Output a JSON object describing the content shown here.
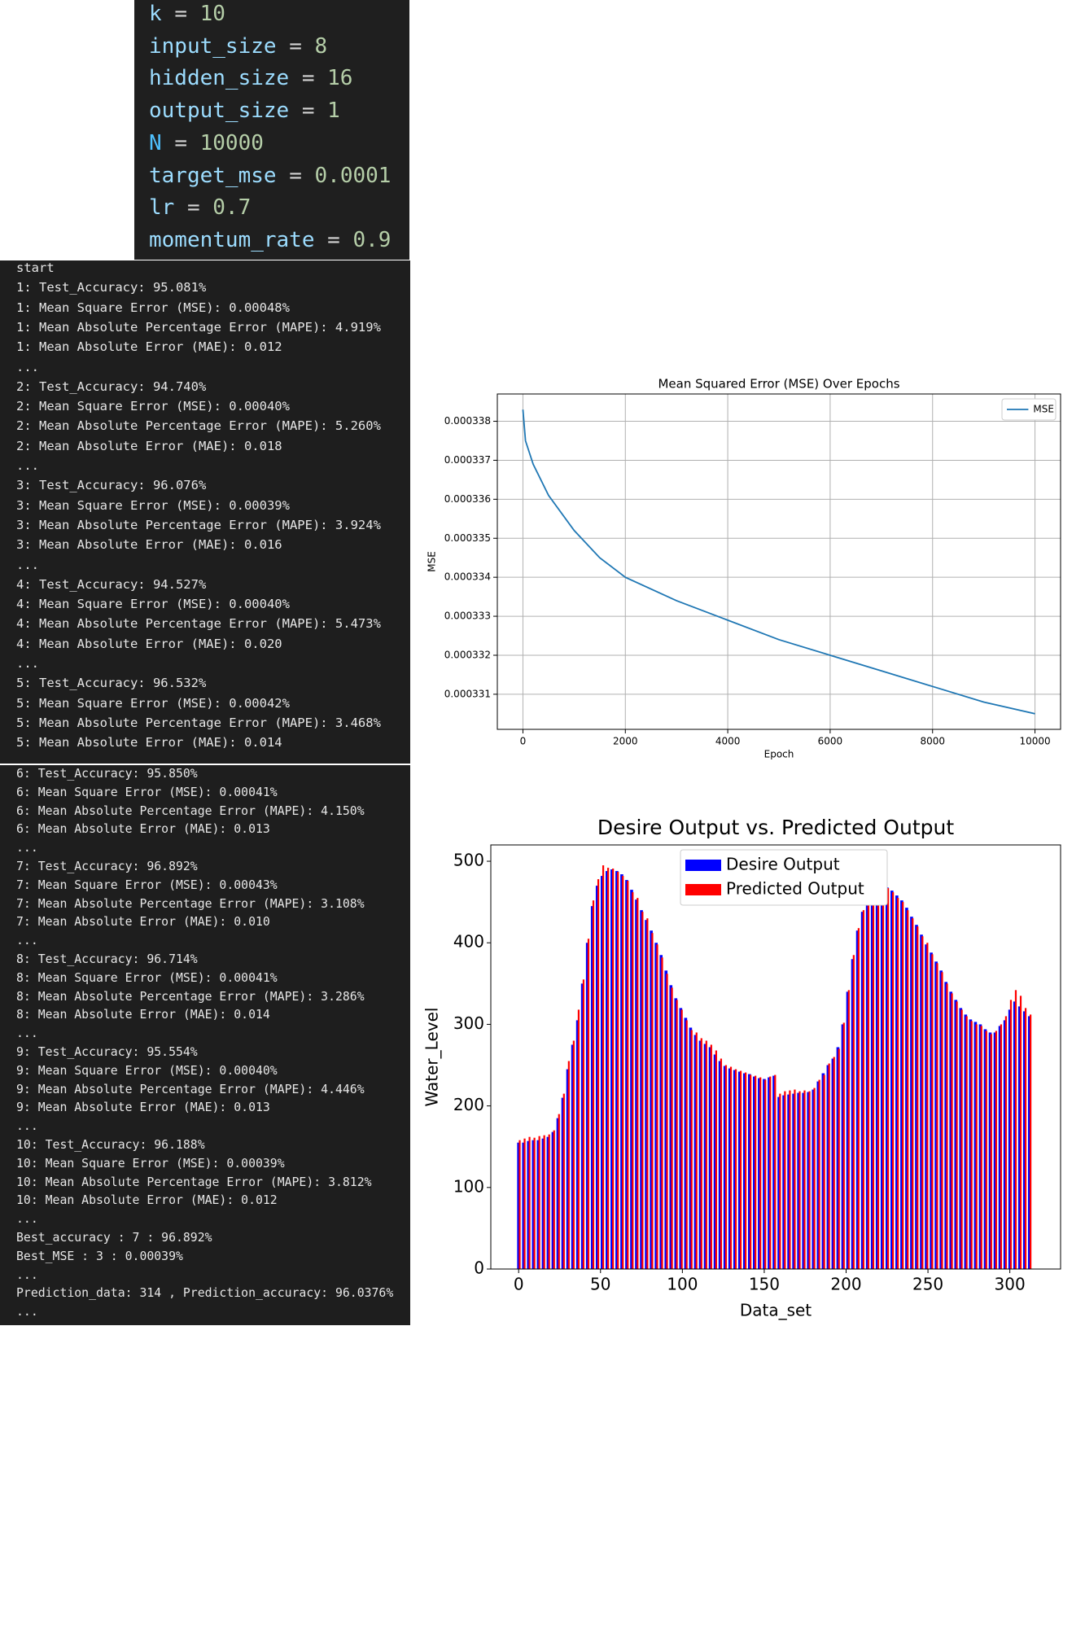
{
  "code": [
    {
      "name": "k",
      "op": "=",
      "value": "10"
    },
    {
      "name": "input_size",
      "op": "=",
      "value": "8"
    },
    {
      "name": "hidden_size",
      "op": "=",
      "value": "16"
    },
    {
      "name": "output_size",
      "op": "=",
      "value": "1"
    },
    {
      "name": "N",
      "op": "=",
      "value": "10000"
    },
    {
      "name": "target_mse",
      "op": "=",
      "value": "0.0001"
    },
    {
      "name": "lr",
      "op": "=",
      "value": "0.7"
    },
    {
      "name": "momentum_rate",
      "op": "=",
      "value": "0.9"
    }
  ],
  "console": {
    "blocks": [
      [
        "start",
        "1: Test_Accuracy: 95.081%",
        "1: Mean Square Error (MSE): 0.00048%",
        "1: Mean Absolute Percentage Error (MAPE): 4.919%",
        "1: Mean Absolute Error (MAE): 0.012",
        "...",
        "2: Test_Accuracy: 94.740%",
        "2: Mean Square Error (MSE): 0.00040%",
        "2: Mean Absolute Percentage Error (MAPE): 5.260%",
        "2: Mean Absolute Error (MAE): 0.018",
        "...",
        "3: Test_Accuracy: 96.076%",
        "3: Mean Square Error (MSE): 0.00039%",
        "3: Mean Absolute Percentage Error (MAPE): 3.924%",
        "3: Mean Absolute Error (MAE): 0.016",
        "...",
        "4: Test_Accuracy: 94.527%",
        "4: Mean Square Error (MSE): 0.00040%",
        "4: Mean Absolute Percentage Error (MAPE): 5.473%",
        "4: Mean Absolute Error (MAE): 0.020",
        "...",
        "5: Test_Accuracy: 96.532%",
        "5: Mean Square Error (MSE): 0.00042%",
        "5: Mean Absolute Percentage Error (MAPE): 3.468%",
        "5: Mean Absolute Error (MAE): 0.014",
        "..."
      ],
      [
        "6: Test_Accuracy: 95.850%",
        "6: Mean Square Error (MSE): 0.00041%",
        "6: Mean Absolute Percentage Error (MAPE): 4.150%",
        "6: Mean Absolute Error (MAE): 0.013",
        "...",
        "7: Test_Accuracy: 96.892%",
        "7: Mean Square Error (MSE): 0.00043%",
        "7: Mean Absolute Percentage Error (MAPE): 3.108%",
        "7: Mean Absolute Error (MAE): 0.010",
        "...",
        "8: Test_Accuracy: 96.714%",
        "8: Mean Square Error (MSE): 0.00041%",
        "8: Mean Absolute Percentage Error (MAPE): 3.286%",
        "8: Mean Absolute Error (MAE): 0.014",
        "...",
        "9: Test_Accuracy: 95.554%",
        "9: Mean Square Error (MSE): 0.00040%",
        "9: Mean Absolute Percentage Error (MAPE): 4.446%",
        "9: Mean Absolute Error (MAE): 0.013",
        "...",
        "10: Test_Accuracy: 96.188%",
        "10: Mean Square Error (MSE): 0.00039%",
        "10: Mean Absolute Percentage Error (MAPE): 3.812%",
        "10: Mean Absolute Error (MAE): 0.012",
        "...",
        "Best_accuracy : 7 : 96.892%",
        "Best_MSE : 3 : 0.00039%",
        "...",
        "Prediction_data: 314 , Prediction_accuracy: 96.0376%",
        "..."
      ]
    ]
  },
  "chart_data": [
    {
      "type": "line",
      "title": "Mean Squared Error (MSE) Over Epochs",
      "x_label": "Epoch",
      "y_label": "MSE",
      "x": [
        0,
        50,
        200,
        500,
        1000,
        1500,
        2000,
        3000,
        4000,
        5000,
        6000,
        7000,
        8000,
        9000,
        10000
      ],
      "series": [
        {
          "name": "MSE",
          "color": "#1f77b4",
          "values": [
            0.0003383,
            0.0003375,
            0.0003369,
            0.0003361,
            0.0003352,
            0.0003345,
            0.000334,
            0.0003334,
            0.0003329,
            0.0003324,
            0.000332,
            0.0003316,
            0.0003312,
            0.0003308,
            0.0003305
          ]
        }
      ],
      "xlim": [
        -500,
        10500
      ],
      "xticks": [
        0,
        2000,
        4000,
        6000,
        8000,
        10000
      ],
      "ylim": [
        0.0003301,
        0.0003387
      ],
      "yticks": [
        0.000331,
        0.000332,
        0.000333,
        0.000334,
        0.000335,
        0.000336,
        0.000337,
        0.000338
      ],
      "grid": true,
      "legend": "upper right"
    },
    {
      "type": "bar",
      "title": "Desire Output vs. Predicted Output",
      "x_label": "Data_set",
      "y_label": "Water_Level",
      "x": [
        0,
        3,
        6,
        9,
        12,
        15,
        18,
        21,
        24,
        27,
        30,
        33,
        36,
        39,
        42,
        45,
        48,
        51,
        54,
        57,
        60,
        63,
        66,
        69,
        72,
        75,
        78,
        81,
        84,
        87,
        90,
        93,
        96,
        99,
        102,
        105,
        108,
        111,
        114,
        117,
        120,
        123,
        126,
        129,
        132,
        135,
        138,
        141,
        144,
        147,
        150,
        153,
        156,
        159,
        162,
        165,
        168,
        171,
        174,
        177,
        180,
        183,
        186,
        189,
        192,
        195,
        198,
        201,
        204,
        207,
        210,
        213,
        216,
        219,
        222,
        225,
        228,
        231,
        234,
        237,
        240,
        243,
        246,
        249,
        252,
        255,
        258,
        261,
        264,
        267,
        270,
        273,
        276,
        279,
        282,
        285,
        288,
        291,
        294,
        297,
        300,
        303,
        306,
        309,
        312
      ],
      "series": [
        {
          "name": "Desire Output",
          "color": "#0000ff",
          "values": [
            155,
            155,
            157,
            158,
            158,
            160,
            162,
            168,
            185,
            210,
            245,
            275,
            305,
            350,
            400,
            445,
            470,
            482,
            488,
            490,
            488,
            484,
            477,
            465,
            453,
            440,
            428,
            415,
            400,
            385,
            366,
            348,
            332,
            320,
            308,
            296,
            287,
            280,
            276,
            272,
            263,
            255,
            249,
            246,
            244,
            242,
            240,
            239,
            236,
            234,
            233,
            235,
            237,
            211,
            213,
            214,
            215,
            216,
            216,
            217,
            220,
            230,
            240,
            250,
            258,
            272,
            300,
            340,
            380,
            415,
            438,
            455,
            465,
            470,
            470,
            468,
            464,
            458,
            452,
            443,
            432,
            422,
            410,
            398,
            388,
            377,
            366,
            352,
            340,
            330,
            320,
            312,
            306,
            303,
            300,
            294,
            290,
            290,
            298,
            305,
            318,
            328,
            322,
            316,
            310
          ]
        },
        {
          "name": "Predicted Output",
          "color": "#ff0000",
          "values": [
            158,
            160,
            162,
            161,
            163,
            164,
            165,
            170,
            190,
            215,
            255,
            280,
            318,
            355,
            405,
            452,
            478,
            495,
            492,
            491,
            487,
            482,
            476,
            462,
            455,
            438,
            430,
            412,
            398,
            382,
            362,
            345,
            330,
            318,
            305,
            293,
            290,
            283,
            280,
            275,
            268,
            258,
            250,
            248,
            245,
            243,
            241,
            238,
            237,
            235,
            232,
            236,
            238,
            215,
            218,
            219,
            220,
            218,
            219,
            218,
            222,
            232,
            238,
            252,
            260,
            270,
            302,
            342,
            385,
            418,
            440,
            456,
            466,
            469,
            471,
            467,
            462,
            455,
            450,
            440,
            430,
            420,
            408,
            400,
            386,
            375,
            364,
            350,
            338,
            328,
            318,
            310,
            304,
            300,
            298,
            292,
            288,
            292,
            300,
            310,
            330,
            342,
            335,
            320,
            312
          ]
        }
      ],
      "xlim": [
        -17,
        331
      ],
      "xticks": [
        0,
        50,
        100,
        150,
        200,
        250,
        300
      ],
      "ylim": [
        0,
        520
      ],
      "yticks": [
        0,
        100,
        200,
        300,
        400,
        500
      ],
      "grid": false,
      "legend": "upper center"
    }
  ]
}
